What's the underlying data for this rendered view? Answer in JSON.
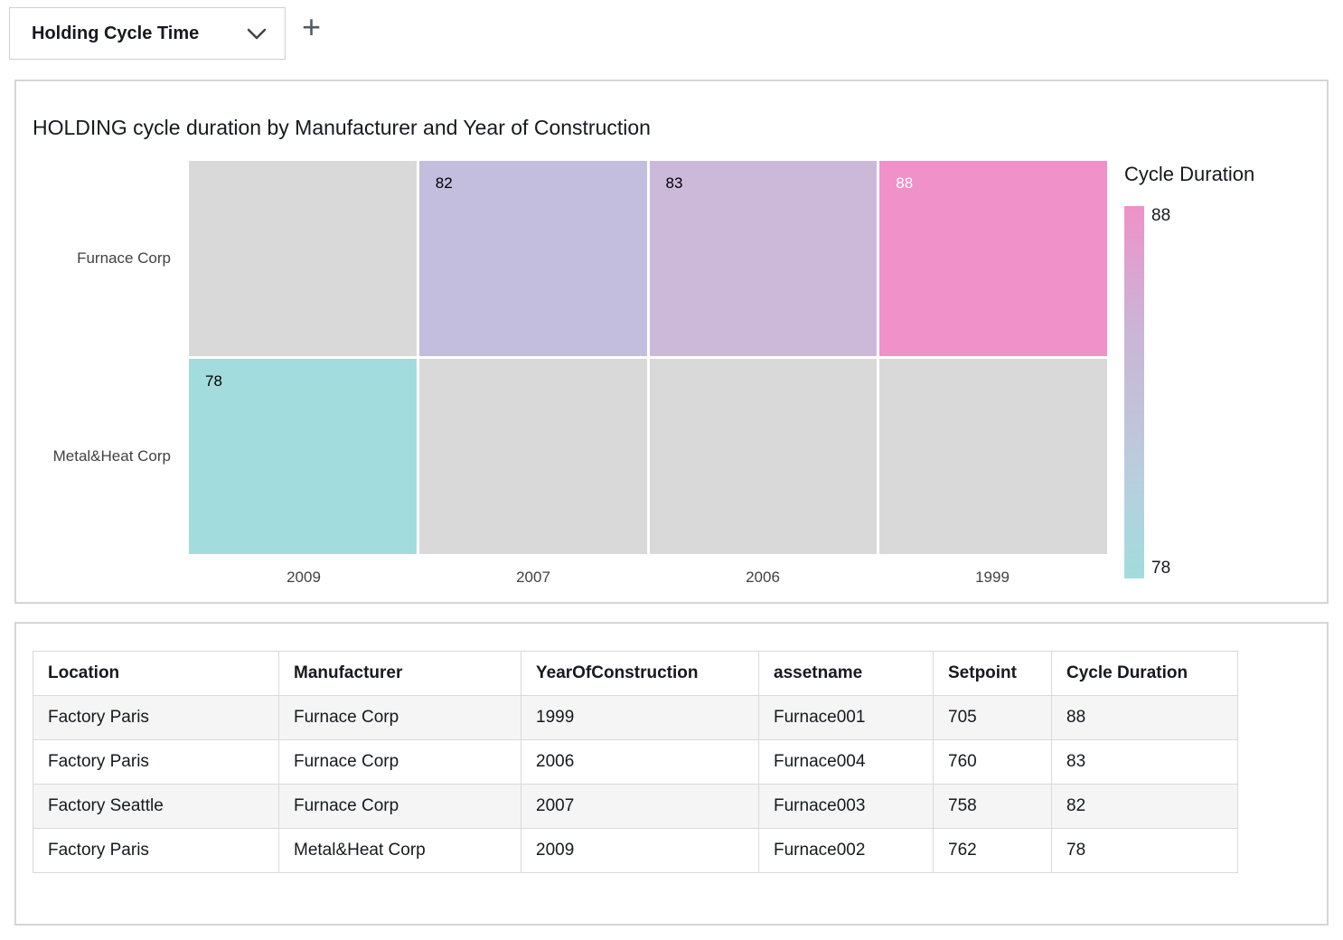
{
  "tabs": {
    "active": "Holding Cycle Time",
    "add_label": "+"
  },
  "chart": {
    "title": "HOLDING cycle duration by Manufacturer and Year of Construction"
  },
  "chart_data": {
    "type": "heatmap",
    "title": "HOLDING cycle duration by Manufacturer and Year of Construction",
    "rows": [
      "Furnace Corp",
      "Metal&Heat Corp"
    ],
    "columns": [
      "2009",
      "2007",
      "2006",
      "1999"
    ],
    "values": [
      [
        null,
        82,
        83,
        88
      ],
      [
        78,
        null,
        null,
        null
      ]
    ],
    "cell_colors": [
      [
        "#d9d9d9",
        "#c3bedd",
        "#ccb9da",
        "#f091c9"
      ],
      [
        "#a2dcdd",
        "#d9d9d9",
        "#d9d9d9",
        "#d9d9d9"
      ]
    ],
    "no_data_color": "#d9d9d9",
    "legend": {
      "title": "Cycle Duration",
      "max": 88,
      "min": 78,
      "max_color": "#f091c9",
      "min_color": "#a2dcdd"
    }
  },
  "table": {
    "headers": [
      "Location",
      "Manufacturer",
      "YearOfConstruction",
      "assetname",
      "Setpoint",
      "Cycle Duration"
    ],
    "numeric_columns": [
      4,
      5
    ],
    "rows": [
      [
        "Factory Paris",
        "Furnace Corp",
        "1999",
        "Furnace001",
        "705",
        "88"
      ],
      [
        "Factory Paris",
        "Furnace Corp",
        "2006",
        "Furnace004",
        "760",
        "83"
      ],
      [
        "Factory Seattle",
        "Furnace Corp",
        "2007",
        "Furnace003",
        "758",
        "82"
      ],
      [
        "Factory Paris",
        "Metal&Heat Corp",
        "2009",
        "Furnace002",
        "762",
        "78"
      ]
    ]
  }
}
